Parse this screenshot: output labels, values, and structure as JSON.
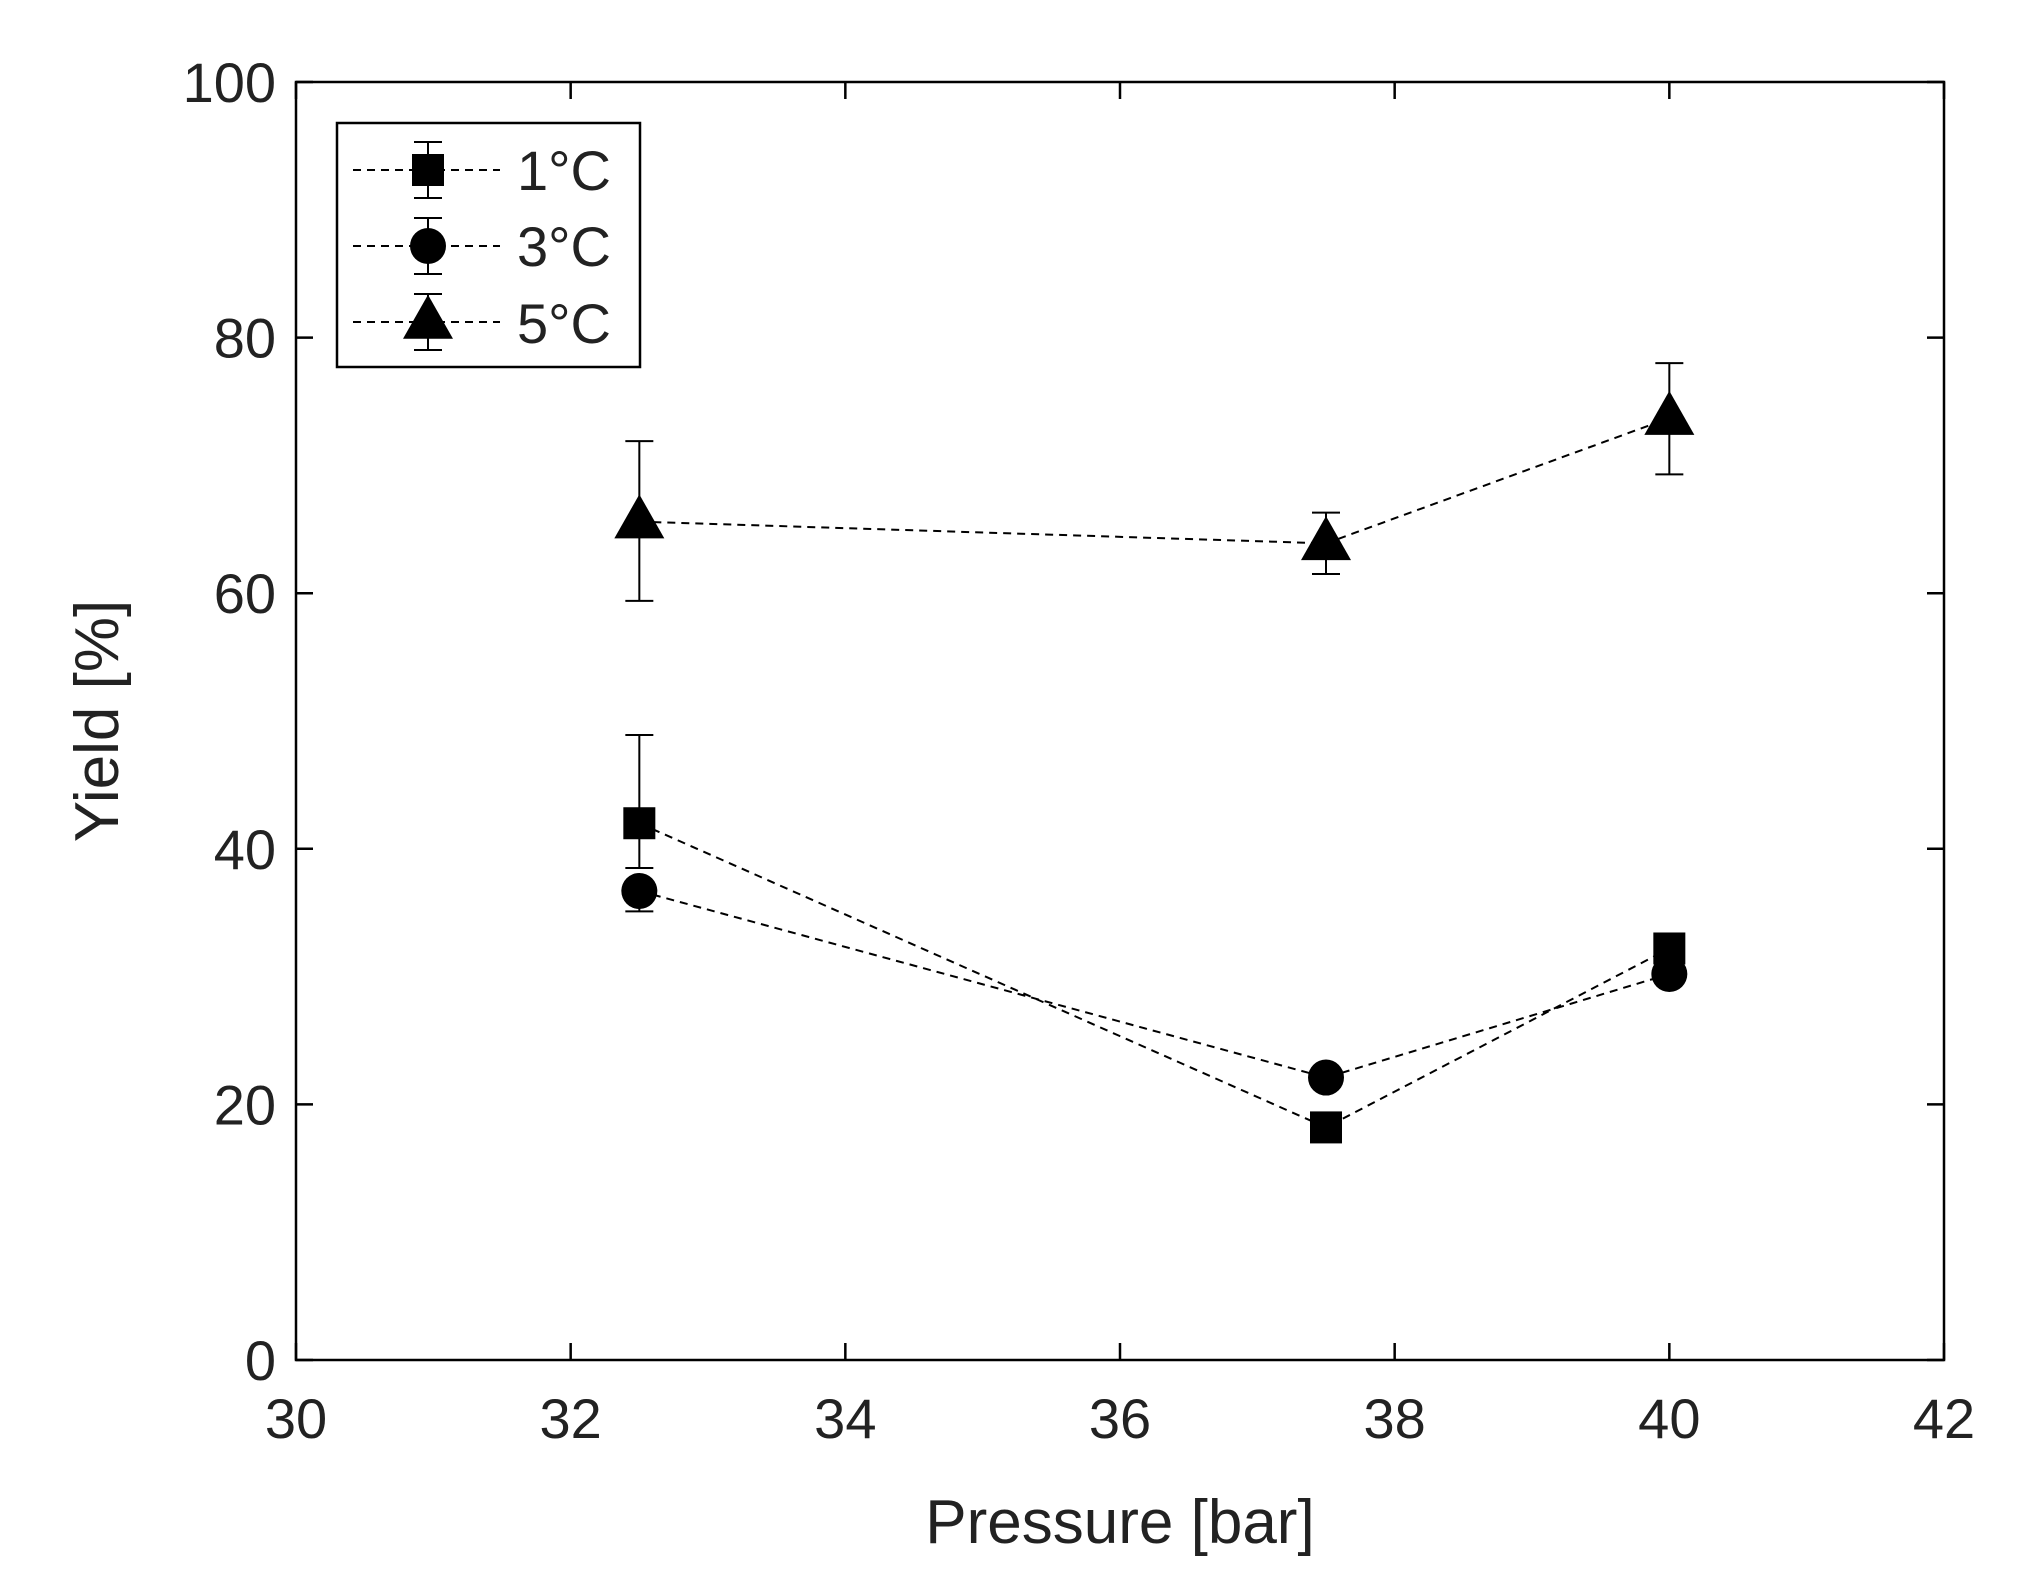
{
  "chart_data": {
    "type": "scatter",
    "title": "",
    "xlabel": "Pressure [bar]",
    "ylabel": "Yield [%]",
    "xlim": [
      30,
      42
    ],
    "ylim": [
      0,
      100
    ],
    "xticks": [
      30,
      32,
      34,
      36,
      38,
      40,
      42
    ],
    "yticks": [
      0,
      20,
      40,
      60,
      80,
      100
    ],
    "x_tick_labels": [
      "30",
      "32",
      "34",
      "36",
      "38",
      "40",
      "42"
    ],
    "y_tick_labels": [
      "0",
      "20",
      "40",
      "60",
      "80",
      "100"
    ],
    "grid": false,
    "legend_position": "top-left",
    "line_style": "dashed",
    "series": [
      {
        "name": "1°C",
        "marker": "square",
        "x": [
          32.5,
          37.5,
          40
        ],
        "y": [
          42,
          18.2,
          32.2
        ],
        "yerr_low": [
          38.5,
          null,
          null
        ],
        "yerr_high": [
          48.9,
          null,
          null
        ]
      },
      {
        "name": "3°C",
        "marker": "circle",
        "x": [
          32.5,
          37.5,
          40
        ],
        "y": [
          36.7,
          22.1,
          30.2
        ],
        "yerr_low": [
          35.1,
          null,
          null
        ],
        "yerr_high": [
          null,
          null,
          null
        ]
      },
      {
        "name": "5°C",
        "marker": "triangle",
        "x": [
          32.5,
          37.5,
          40
        ],
        "y": [
          65.6,
          63.9,
          73.7
        ],
        "yerr_low": [
          59.4,
          61.5,
          69.3
        ],
        "yerr_high": [
          71.9,
          66.3,
          78
        ]
      }
    ],
    "colors": {
      "ink": "#000000",
      "text": "#222222",
      "background": "#ffffff"
    }
  }
}
